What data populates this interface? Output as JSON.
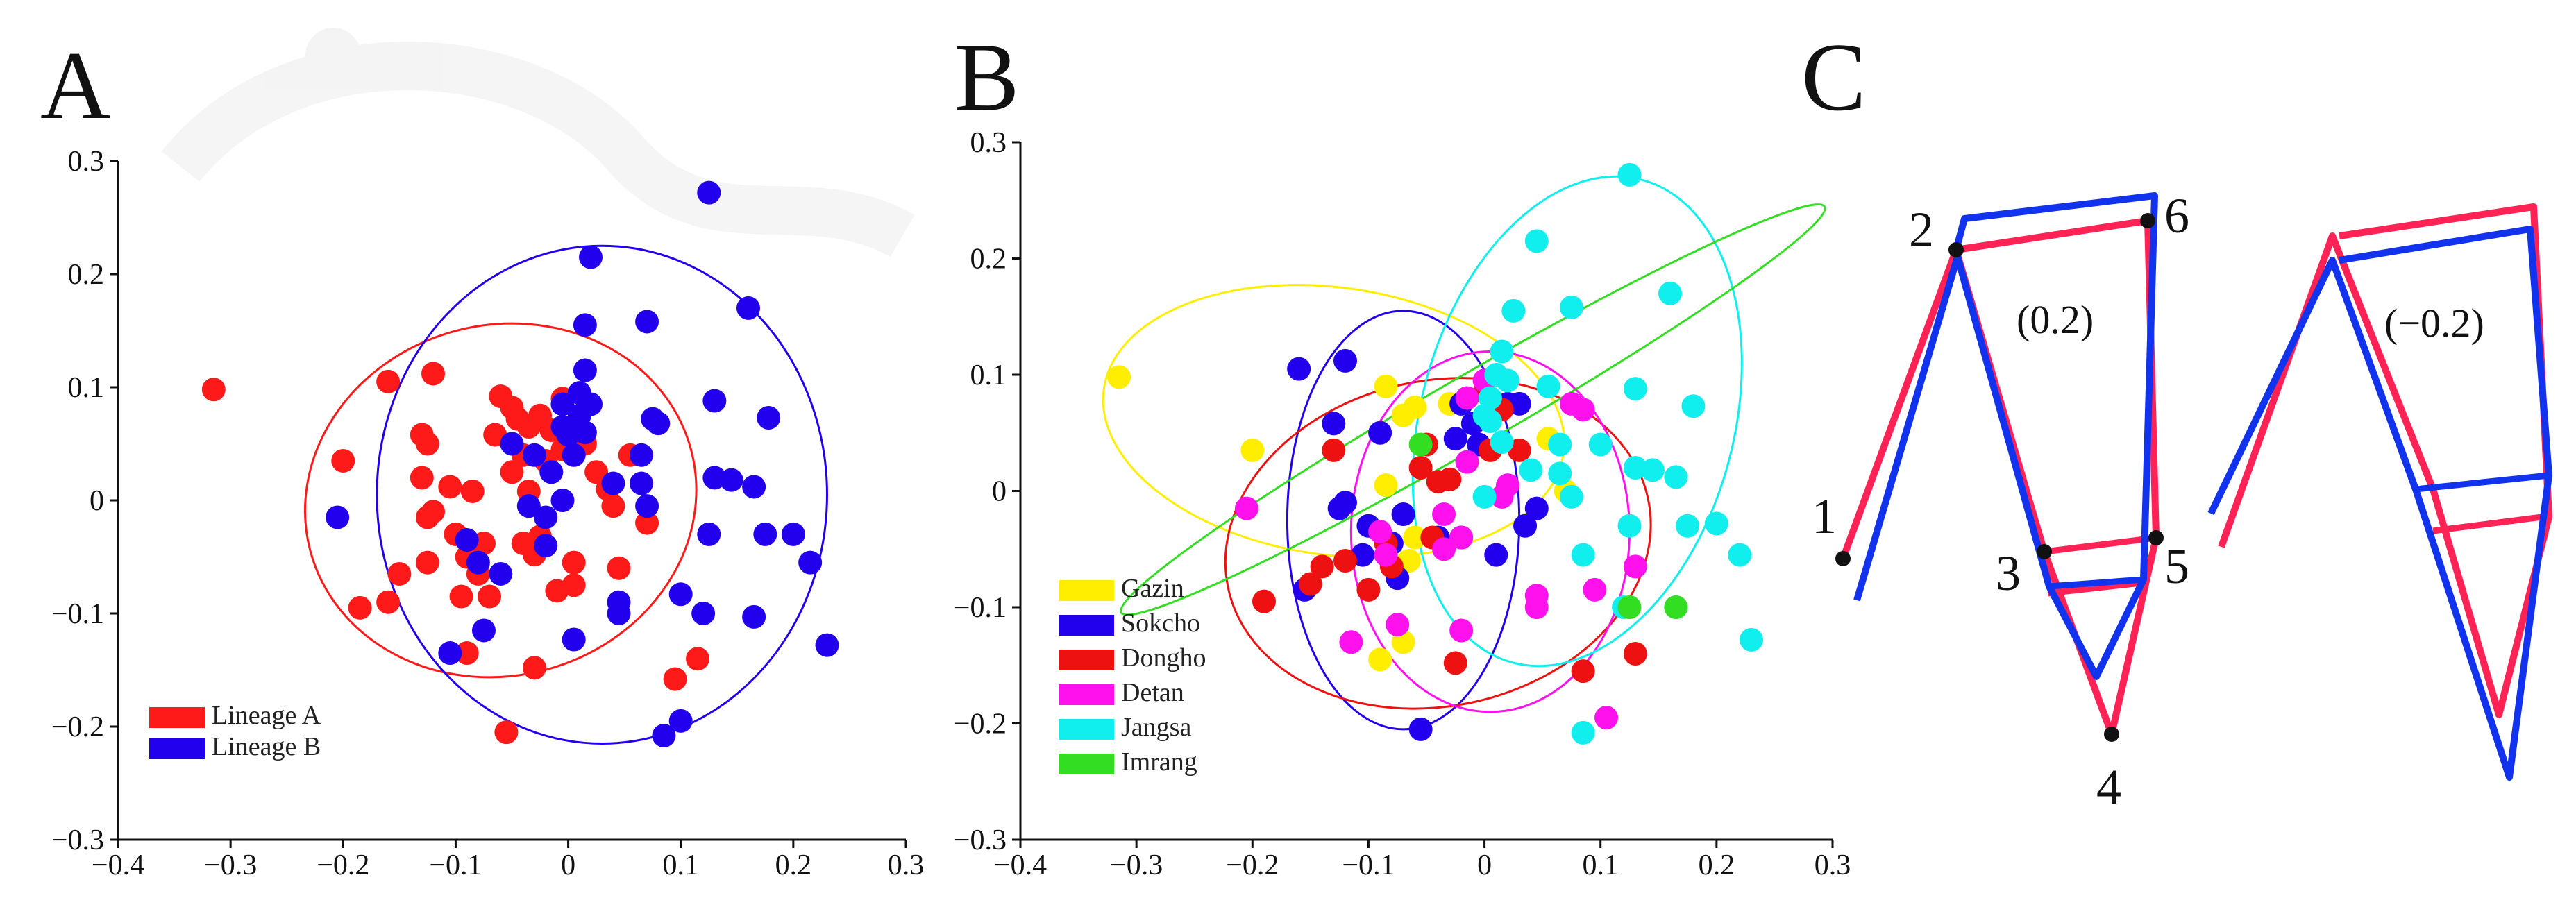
{
  "panels": {
    "a": {
      "letter": "A"
    },
    "b": {
      "letter": "B"
    },
    "c": {
      "letter": "C"
    }
  },
  "chart_data": [
    {
      "type": "scatter",
      "panel": "A",
      "title": "",
      "xlabel": "",
      "ylabel": "",
      "xlim": [
        -0.4,
        0.3
      ],
      "ylim": [
        -0.3,
        0.3
      ],
      "xticks": [
        "−0.4",
        "−0.3",
        "−0.2",
        "−0.1",
        "0",
        "0.1",
        "0.2",
        "0.3"
      ],
      "yticks": [
        "0.3",
        "0.2",
        "0.1",
        "0",
        "−0.1",
        "−0.2",
        "−0.3"
      ],
      "legend_position": "bottom-left",
      "series": [
        {
          "name": "Lineage A",
          "color": "#ff1a1a",
          "points": [
            [
              -0.315,
              0.098
            ],
            [
              -0.16,
              0.105
            ],
            [
              -0.12,
              0.112
            ],
            [
              -0.13,
              0.058
            ],
            [
              -0.125,
              0.05
            ],
            [
              -0.2,
              0.035
            ],
            [
              -0.185,
              -0.095
            ],
            [
              -0.16,
              -0.09
            ],
            [
              -0.15,
              -0.065
            ],
            [
              -0.125,
              -0.055
            ],
            [
              -0.125,
              -0.015
            ],
            [
              -0.12,
              -0.01
            ],
            [
              -0.13,
              0.02
            ],
            [
              -0.105,
              0.012
            ],
            [
              -0.1,
              -0.03
            ],
            [
              -0.09,
              -0.05
            ],
            [
              -0.095,
              -0.085
            ],
            [
              -0.08,
              -0.065
            ],
            [
              -0.085,
              0.008
            ],
            [
              -0.075,
              -0.038
            ],
            [
              -0.07,
              -0.085
            ],
            [
              -0.065,
              0.058
            ],
            [
              -0.06,
              0.092
            ],
            [
              -0.05,
              0.082
            ],
            [
              -0.045,
              0.072
            ],
            [
              -0.035,
              0.065
            ],
            [
              -0.04,
              0.04
            ],
            [
              -0.025,
              0.075
            ],
            [
              -0.015,
              0.062
            ],
            [
              -0.05,
              0.025
            ],
            [
              -0.035,
              0.008
            ],
            [
              -0.02,
              0.035
            ],
            [
              -0.005,
              0.045
            ],
            [
              -0.04,
              -0.038
            ],
            [
              -0.03,
              -0.048
            ],
            [
              -0.025,
              -0.032
            ],
            [
              -0.01,
              -0.08
            ],
            [
              0.005,
              -0.055
            ],
            [
              0.015,
              0.05
            ],
            [
              0.025,
              0.025
            ],
            [
              0.035,
              0.01
            ],
            [
              0.04,
              -0.005
            ],
            [
              0.055,
              0.04
            ],
            [
              0.07,
              -0.02
            ],
            [
              0.045,
              -0.06
            ],
            [
              0.095,
              -0.158
            ],
            [
              0.115,
              -0.14
            ],
            [
              -0.09,
              -0.135
            ],
            [
              -0.03,
              -0.148
            ],
            [
              -0.055,
              -0.205
            ],
            [
              0.005,
              -0.075
            ],
            [
              -0.005,
              0.09
            ]
          ]
        },
        {
          "name": "Lineage B",
          "color": "#2200ee",
          "points": [
            [
              0.125,
              0.272
            ],
            [
              0.02,
              0.215
            ],
            [
              0.015,
              0.155
            ],
            [
              0.07,
              0.158
            ],
            [
              0.16,
              0.17
            ],
            [
              0.015,
              0.115
            ],
            [
              -0.005,
              0.085
            ],
            [
              0.01,
              0.095
            ],
            [
              0.01,
              0.075
            ],
            [
              0.02,
              0.085
            ],
            [
              -0.005,
              0.065
            ],
            [
              0.0,
              0.058
            ],
            [
              0.005,
              0.04
            ],
            [
              0.015,
              0.06
            ],
            [
              0.075,
              0.072
            ],
            [
              0.08,
              0.068
            ],
            [
              0.13,
              0.088
            ],
            [
              0.178,
              0.073
            ],
            [
              0.065,
              0.04
            ],
            [
              0.065,
              0.015
            ],
            [
              0.07,
              -0.005
            ],
            [
              0.04,
              0.015
            ],
            [
              -0.03,
              0.04
            ],
            [
              -0.05,
              0.05
            ],
            [
              -0.035,
              -0.005
            ],
            [
              -0.02,
              -0.015
            ],
            [
              -0.015,
              0.025
            ],
            [
              -0.005,
              0.0
            ],
            [
              0.125,
              -0.03
            ],
            [
              0.13,
              0.02
            ],
            [
              0.145,
              0.018
            ],
            [
              0.165,
              0.012
            ],
            [
              0.175,
              -0.03
            ],
            [
              0.2,
              -0.03
            ],
            [
              0.215,
              -0.055
            ],
            [
              0.23,
              -0.128
            ],
            [
              0.165,
              -0.103
            ],
            [
              0.12,
              -0.1
            ],
            [
              0.1,
              -0.083
            ],
            [
              0.045,
              -0.09
            ],
            [
              0.045,
              -0.1
            ],
            [
              0.005,
              -0.123
            ],
            [
              -0.02,
              -0.04
            ],
            [
              -0.06,
              -0.065
            ],
            [
              -0.075,
              -0.115
            ],
            [
              -0.105,
              -0.135
            ],
            [
              -0.205,
              -0.015
            ],
            [
              -0.09,
              -0.035
            ],
            [
              -0.08,
              -0.055
            ],
            [
              0.085,
              -0.208
            ],
            [
              0.1,
              -0.195
            ]
          ]
        }
      ],
      "ellipses": [
        {
          "series": "Lineage A",
          "cx": -0.06,
          "cy": 0.0,
          "rx": 0.175,
          "ry": 0.155,
          "angle_deg": 15
        },
        {
          "series": "Lineage B",
          "cx": 0.03,
          "cy": 0.005,
          "rx": 0.2,
          "ry": 0.22,
          "angle_deg": 0
        }
      ]
    },
    {
      "type": "scatter",
      "panel": "B",
      "title": "",
      "xlabel": "",
      "ylabel": "",
      "xlim": [
        -0.4,
        0.3
      ],
      "ylim": [
        -0.3,
        0.3
      ],
      "xticks": [
        "−0.4",
        "−0.3",
        "−0.2",
        "−0.1",
        "0",
        "0.1",
        "0.2",
        "0.3"
      ],
      "yticks": [
        "0.3",
        "0.2",
        "0.1",
        "0",
        "−0.1",
        "−0.2",
        "−0.3"
      ],
      "legend_position": "bottom-left",
      "series": [
        {
          "name": "Gazin",
          "color": "#ffee00",
          "points": [
            [
              -0.315,
              0.098
            ],
            [
              -0.2,
              0.035
            ],
            [
              -0.085,
              0.09
            ],
            [
              -0.07,
              0.065
            ],
            [
              -0.06,
              0.072
            ],
            [
              -0.03,
              0.075
            ],
            [
              -0.085,
              0.005
            ],
            [
              -0.06,
              -0.04
            ],
            [
              -0.065,
              -0.06
            ],
            [
              -0.07,
              -0.13
            ],
            [
              0.055,
              0.045
            ],
            [
              -0.09,
              -0.145
            ],
            [
              0.07,
              0.0
            ]
          ]
        },
        {
          "name": "Sokcho",
          "color": "#2200ee",
          "points": [
            [
              -0.16,
              0.105
            ],
            [
              -0.12,
              0.112
            ],
            [
              -0.13,
              0.058
            ],
            [
              -0.09,
              0.05
            ],
            [
              -0.12,
              -0.01
            ],
            [
              -0.125,
              -0.015
            ],
            [
              -0.1,
              -0.03
            ],
            [
              -0.105,
              -0.055
            ],
            [
              -0.155,
              -0.085
            ],
            [
              -0.075,
              -0.075
            ],
            [
              -0.08,
              -0.045
            ],
            [
              -0.07,
              -0.02
            ],
            [
              -0.04,
              -0.04
            ],
            [
              -0.02,
              0.075
            ],
            [
              -0.01,
              0.058
            ],
            [
              0.02,
              0.075
            ],
            [
              0.03,
              0.075
            ],
            [
              -0.005,
              0.04
            ],
            [
              -0.025,
              0.045
            ],
            [
              -0.02,
              -0.04
            ],
            [
              0.01,
              -0.055
            ],
            [
              0.035,
              -0.03
            ],
            [
              0.045,
              -0.015
            ],
            [
              -0.055,
              -0.205
            ]
          ]
        },
        {
          "name": "Dongho",
          "color": "#ee1111",
          "points": [
            [
              -0.13,
              0.035
            ],
            [
              -0.12,
              -0.06
            ],
            [
              -0.14,
              -0.065
            ],
            [
              -0.19,
              -0.095
            ],
            [
              -0.15,
              -0.08
            ],
            [
              -0.1,
              -0.085
            ],
            [
              -0.085,
              -0.045
            ],
            [
              -0.08,
              -0.065
            ],
            [
              -0.055,
              0.02
            ],
            [
              -0.04,
              0.008
            ],
            [
              -0.05,
              0.04
            ],
            [
              -0.03,
              0.01
            ],
            [
              -0.045,
              -0.04
            ],
            [
              -0.025,
              -0.148
            ],
            [
              0.005,
              0.035
            ],
            [
              0.0,
              0.085
            ],
            [
              0.015,
              0.07
            ],
            [
              0.085,
              -0.155
            ],
            [
              0.13,
              -0.14
            ],
            [
              0.03,
              0.035
            ]
          ]
        },
        {
          "name": "Detan",
          "color": "#ff11ee",
          "points": [
            [
              -0.205,
              -0.015
            ],
            [
              -0.085,
              -0.055
            ],
            [
              -0.09,
              -0.035
            ],
            [
              -0.115,
              -0.13
            ],
            [
              -0.075,
              -0.115
            ],
            [
              -0.035,
              -0.05
            ],
            [
              -0.035,
              -0.02
            ],
            [
              -0.015,
              0.025
            ],
            [
              0.0,
              0.095
            ],
            [
              0.02,
              0.005
            ],
            [
              -0.02,
              -0.04
            ],
            [
              -0.02,
              -0.12
            ],
            [
              0.045,
              -0.09
            ],
            [
              0.045,
              -0.1
            ],
            [
              0.075,
              0.075
            ],
            [
              0.085,
              0.07
            ],
            [
              0.095,
              -0.085
            ],
            [
              0.105,
              -0.195
            ],
            [
              0.13,
              -0.065
            ],
            [
              -0.015,
              0.08
            ],
            [
              0.015,
              -0.005
            ]
          ]
        },
        {
          "name": "Jangsa",
          "color": "#11eeee",
          "points": [
            [
              0.125,
              0.272
            ],
            [
              0.045,
              0.215
            ],
            [
              0.025,
              0.155
            ],
            [
              0.075,
              0.158
            ],
            [
              0.16,
              0.17
            ],
            [
              0.015,
              0.12
            ],
            [
              0.0,
              0.065
            ],
            [
              0.005,
              0.06
            ],
            [
              0.015,
              0.042
            ],
            [
              0.005,
              0.08
            ],
            [
              0.02,
              0.095
            ],
            [
              0.01,
              0.1
            ],
            [
              0.055,
              0.09
            ],
            [
              0.13,
              0.088
            ],
            [
              0.18,
              0.073
            ],
            [
              0.065,
              0.04
            ],
            [
              0.065,
              0.015
            ],
            [
              0.075,
              -0.005
            ],
            [
              0.04,
              0.018
            ],
            [
              0.085,
              -0.055
            ],
            [
              0.13,
              0.02
            ],
            [
              0.145,
              0.018
            ],
            [
              0.165,
              0.012
            ],
            [
              0.175,
              -0.03
            ],
            [
              0.2,
              -0.028
            ],
            [
              0.22,
              -0.055
            ],
            [
              0.23,
              -0.128
            ],
            [
              0.165,
              -0.1
            ],
            [
              0.12,
              -0.1
            ],
            [
              0.125,
              -0.03
            ],
            [
              0.0,
              -0.005
            ],
            [
              0.085,
              -0.208
            ],
            [
              0.1,
              0.04
            ]
          ]
        },
        {
          "name": "Imrang",
          "color": "#33dd22",
          "points": [
            [
              -0.055,
              0.04
            ],
            [
              0.125,
              -0.1
            ],
            [
              0.165,
              -0.1
            ]
          ]
        }
      ],
      "ellipses": [
        {
          "series": "Gazin",
          "cx": -0.13,
          "cy": 0.06,
          "rx": 0.2,
          "ry": 0.115,
          "angle_deg": -8
        },
        {
          "series": "Sokcho",
          "cx": -0.07,
          "cy": -0.025,
          "rx": 0.1,
          "ry": 0.18,
          "angle_deg": 0
        },
        {
          "series": "Dongho",
          "cx": -0.04,
          "cy": -0.045,
          "rx": 0.185,
          "ry": 0.14,
          "angle_deg": 12
        },
        {
          "series": "Detan",
          "cx": 0.005,
          "cy": -0.035,
          "rx": 0.12,
          "ry": 0.155,
          "angle_deg": 0
        },
        {
          "series": "Jangsa",
          "cx": 0.08,
          "cy": 0.06,
          "rx": 0.135,
          "ry": 0.215,
          "angle_deg": -15
        },
        {
          "series": "Imrang",
          "cx": -0.01,
          "cy": 0.07,
          "rx": 0.35,
          "ry": 0.03,
          "angle_deg": 30
        }
      ]
    }
  ],
  "landmarks_diagram": {
    "type": "deformation-grid",
    "colors": {
      "reference": "#ff2255",
      "shape": "#1133ee"
    },
    "left": {
      "caption": "(0.2)",
      "landmark_labels": [
        "1",
        "2",
        "3",
        "4",
        "5",
        "6"
      ]
    },
    "right": {
      "caption": "(−0.2)"
    }
  }
}
